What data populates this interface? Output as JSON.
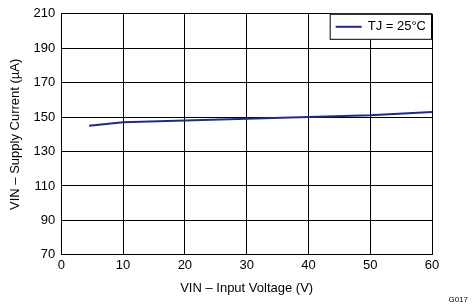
{
  "chart_data": {
    "type": "line",
    "x_label": "VIN – Input Voltage (V)",
    "y_label": "VIN – Supply Current (µA)",
    "annotation": "G017",
    "x": [
      4.5,
      10,
      20,
      30,
      40,
      50,
      60
    ],
    "series": [
      {
        "name": "TJ = 25°C",
        "color": "#1f2a8c",
        "values": [
          145,
          147,
          148,
          149,
          150,
          151,
          153
        ]
      }
    ],
    "xlim": [
      0,
      60
    ],
    "xticks": [
      0,
      10,
      20,
      30,
      40,
      50,
      60
    ],
    "ylim": [
      70,
      210
    ],
    "yticks": [
      70,
      90,
      110,
      130,
      150,
      170,
      190,
      210
    ],
    "grid": true,
    "legend": "upper right"
  }
}
